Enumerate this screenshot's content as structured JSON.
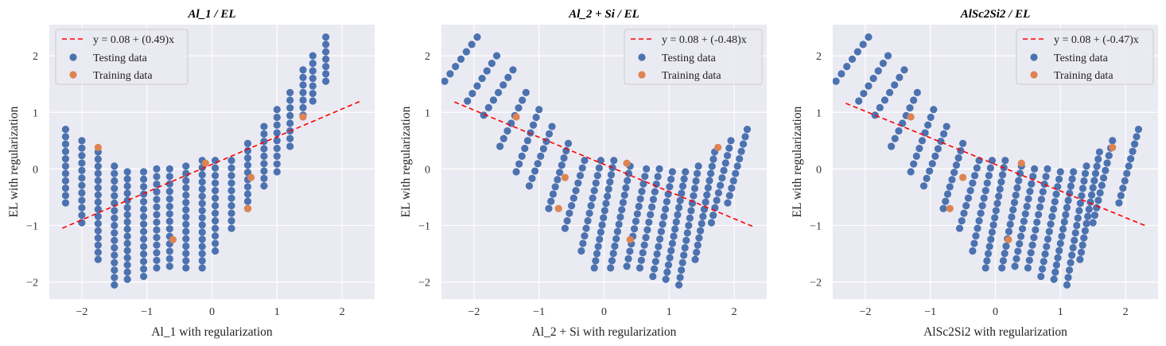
{
  "chart_data": [
    {
      "type": "scatter",
      "title": "Al_1 / EL",
      "xlabel": "Al_1 with regularization",
      "ylabel": "EL  with regularization",
      "xlim": [
        -2.5,
        2.5
      ],
      "ylim": [
        -2.3,
        2.55
      ],
      "xticks": [
        -2,
        -1,
        0,
        1,
        2
      ],
      "yticks": [
        -2,
        -1,
        0,
        1,
        2
      ],
      "fit": {
        "label": "y = 0.08 + (0.49)x",
        "intercept": 0.08,
        "slope": 0.49,
        "x_range": [
          -2.3,
          2.3
        ]
      },
      "testing": {
        "label": "Testing data",
        "columns": [
          {
            "x": -2.25,
            "y_max": 0.7,
            "y_min": -0.6,
            "shift": 0.0
          },
          {
            "x": -2.0,
            "y_max": 0.5,
            "y_min": -0.95,
            "shift": 0.0
          },
          {
            "x": -1.75,
            "y_max": 0.3,
            "y_min": -1.6,
            "shift": 0.0
          },
          {
            "x": -1.5,
            "y_max": 0.05,
            "y_min": -2.05,
            "shift": 0.0
          },
          {
            "x": -1.3,
            "y_max": -0.05,
            "y_min": -1.95,
            "shift": 0.0
          },
          {
            "x": -1.05,
            "y_max": -0.05,
            "y_min": -1.9,
            "shift": 0.0
          },
          {
            "x": -0.85,
            "y_max": 0.0,
            "y_min": -1.75,
            "shift": 0.0
          },
          {
            "x": -0.65,
            "y_max": 0.0,
            "y_min": -1.72,
            "shift": 0.0
          },
          {
            "x": -0.4,
            "y_max": 0.05,
            "y_min": -1.75,
            "shift": 0.0
          },
          {
            "x": -0.15,
            "y_max": 0.15,
            "y_min": -1.75,
            "shift": 0.0
          },
          {
            "x": 0.05,
            "y_max": 0.15,
            "y_min": -1.45,
            "shift": 0.0
          },
          {
            "x": 0.3,
            "y_max": 0.15,
            "y_min": -1.05,
            "shift": 0.0
          },
          {
            "x": 0.55,
            "y_max": 0.45,
            "y_min": -0.7,
            "shift": 0.0
          },
          {
            "x": 0.8,
            "y_max": 0.75,
            "y_min": -0.3,
            "shift": 0.0
          },
          {
            "x": 1.0,
            "y_max": 1.05,
            "y_min": -0.05,
            "shift": 0.0
          },
          {
            "x": 1.2,
            "y_max": 1.35,
            "y_min": 0.4,
            "shift": 0.0
          },
          {
            "x": 1.4,
            "y_max": 1.75,
            "y_min": 0.95,
            "shift": 0.0
          },
          {
            "x": 1.55,
            "y_max": 2.0,
            "y_min": 1.2,
            "shift": 0.0
          },
          {
            "x": 1.75,
            "y_max": 2.33,
            "y_min": 1.55,
            "shift": 0.0
          }
        ]
      },
      "training": {
        "label": "Training data",
        "points": [
          [
            -1.75,
            0.38
          ],
          [
            -0.6,
            -1.25
          ],
          [
            -0.1,
            0.1
          ],
          [
            0.55,
            -0.7
          ],
          [
            0.6,
            -0.15
          ],
          [
            1.4,
            0.92
          ]
        ]
      }
    },
    {
      "type": "scatter",
      "title": "Al_2 + Si / EL",
      "xlabel": "Al_2 + Si with regularization",
      "ylabel": "EL  with regularization",
      "xlim": [
        -2.5,
        2.5
      ],
      "ylim": [
        -2.3,
        2.55
      ],
      "xticks": [
        -2,
        -1,
        0,
        1,
        2
      ],
      "yticks": [
        -2,
        -1,
        0,
        1,
        2
      ],
      "fit": {
        "label": "y = 0.08 + (-0.48)x",
        "intercept": 0.08,
        "slope": -0.48,
        "x_range": [
          -2.3,
          2.3
        ]
      },
      "testing": {
        "label": "Testing data",
        "columns": [
          {
            "x": -1.95,
            "y_max": 2.33,
            "y_min": 1.55,
            "shift": 0.5
          },
          {
            "x": -1.65,
            "y_max": 2.0,
            "y_min": 1.2,
            "shift": 0.45
          },
          {
            "x": -1.4,
            "y_max": 1.75,
            "y_min": 0.95,
            "shift": 0.45
          },
          {
            "x": -1.2,
            "y_max": 1.35,
            "y_min": 0.4,
            "shift": 0.4
          },
          {
            "x": -1.0,
            "y_max": 1.05,
            "y_min": -0.05,
            "shift": 0.35
          },
          {
            "x": -0.8,
            "y_max": 0.75,
            "y_min": -0.3,
            "shift": 0.35
          },
          {
            "x": -0.55,
            "y_max": 0.45,
            "y_min": -0.7,
            "shift": 0.3
          },
          {
            "x": -0.3,
            "y_max": 0.15,
            "y_min": -1.05,
            "shift": 0.3
          },
          {
            "x": -0.05,
            "y_max": 0.15,
            "y_min": -1.45,
            "shift": 0.3
          },
          {
            "x": 0.15,
            "y_max": 0.15,
            "y_min": -1.75,
            "shift": 0.3
          },
          {
            "x": 0.4,
            "y_max": 0.05,
            "y_min": -1.75,
            "shift": 0.3
          },
          {
            "x": 0.65,
            "y_max": 0.0,
            "y_min": -1.72,
            "shift": 0.3
          },
          {
            "x": 0.85,
            "y_max": 0.0,
            "y_min": -1.75,
            "shift": 0.3
          },
          {
            "x": 1.05,
            "y_max": -0.05,
            "y_min": -1.9,
            "shift": 0.3
          },
          {
            "x": 1.25,
            "y_max": -0.05,
            "y_min": -1.95,
            "shift": 0.3
          },
          {
            "x": 1.45,
            "y_max": 0.05,
            "y_min": -2.05,
            "shift": 0.3
          },
          {
            "x": 1.7,
            "y_max": 0.3,
            "y_min": -1.6,
            "shift": 0.3
          },
          {
            "x": 1.95,
            "y_max": 0.5,
            "y_min": -0.95,
            "shift": 0.3
          },
          {
            "x": 2.2,
            "y_max": 0.7,
            "y_min": -0.6,
            "shift": 0.3
          }
        ]
      },
      "training": {
        "label": "Training data",
        "points": [
          [
            -1.35,
            0.92
          ],
          [
            -0.6,
            -0.15
          ],
          [
            -0.7,
            -0.7
          ],
          [
            0.35,
            0.1
          ],
          [
            0.4,
            -1.25
          ],
          [
            1.75,
            0.38
          ]
        ]
      }
    },
    {
      "type": "scatter",
      "title": "AlSc2Si2 / EL",
      "xlabel": "AlSc2Si2 with regularization",
      "ylabel": "EL  with regularization",
      "xlim": [
        -2.5,
        2.5
      ],
      "ylim": [
        -2.3,
        2.55
      ],
      "xticks": [
        -2,
        -1,
        0,
        1,
        2
      ],
      "yticks": [
        -2,
        -1,
        0,
        1,
        2
      ],
      "fit": {
        "label": "y = 0.08 + (-0.47)x",
        "intercept": 0.08,
        "slope": -0.47,
        "x_range": [
          -2.3,
          2.3
        ]
      },
      "testing": {
        "label": "Testing data",
        "columns": [
          {
            "x": -1.95,
            "y_max": 2.33,
            "y_min": 1.55,
            "shift": 0.5
          },
          {
            "x": -1.65,
            "y_max": 2.0,
            "y_min": 1.2,
            "shift": 0.45
          },
          {
            "x": -1.4,
            "y_max": 1.75,
            "y_min": 0.95,
            "shift": 0.45
          },
          {
            "x": -1.2,
            "y_max": 1.35,
            "y_min": 0.4,
            "shift": 0.4
          },
          {
            "x": -0.95,
            "y_max": 1.05,
            "y_min": -0.05,
            "shift": 0.35
          },
          {
            "x": -0.75,
            "y_max": 0.75,
            "y_min": -0.3,
            "shift": 0.35
          },
          {
            "x": -0.5,
            "y_max": 0.45,
            "y_min": -0.7,
            "shift": 0.3
          },
          {
            "x": -0.25,
            "y_max": 0.15,
            "y_min": -1.05,
            "shift": 0.3
          },
          {
            "x": -0.05,
            "y_max": 0.15,
            "y_min": -1.45,
            "shift": 0.3
          },
          {
            "x": 0.15,
            "y_max": 0.15,
            "y_min": -1.75,
            "shift": 0.3
          },
          {
            "x": 0.4,
            "y_max": 0.05,
            "y_min": -1.75,
            "shift": 0.3
          },
          {
            "x": 0.6,
            "y_max": 0.0,
            "y_min": -1.72,
            "shift": 0.3
          },
          {
            "x": 0.8,
            "y_max": 0.0,
            "y_min": -1.75,
            "shift": 0.3
          },
          {
            "x": 1.0,
            "y_max": -0.05,
            "y_min": -1.9,
            "shift": 0.3
          },
          {
            "x": 1.2,
            "y_max": -0.05,
            "y_min": -1.95,
            "shift": 0.3
          },
          {
            "x": 1.4,
            "y_max": 0.05,
            "y_min": -2.05,
            "shift": 0.3
          },
          {
            "x": 1.6,
            "y_max": 0.3,
            "y_min": -1.6,
            "shift": 0.3
          },
          {
            "x": 1.8,
            "y_max": 0.5,
            "y_min": -0.95,
            "shift": 0.3
          },
          {
            "x": 2.2,
            "y_max": 0.7,
            "y_min": -0.6,
            "shift": 0.3
          }
        ]
      },
      "training": {
        "label": "Training data",
        "points": [
          [
            -1.3,
            0.92
          ],
          [
            -0.5,
            -0.15
          ],
          [
            -0.7,
            -0.7
          ],
          [
            0.4,
            0.1
          ],
          [
            0.2,
            -1.25
          ],
          [
            1.8,
            0.38
          ]
        ]
      }
    }
  ],
  "colors": {
    "background": "#eaeaf2",
    "grid": "#ffffff",
    "testing": "#4c72b0",
    "training": "#dd8452",
    "fit": "#ff0000"
  }
}
